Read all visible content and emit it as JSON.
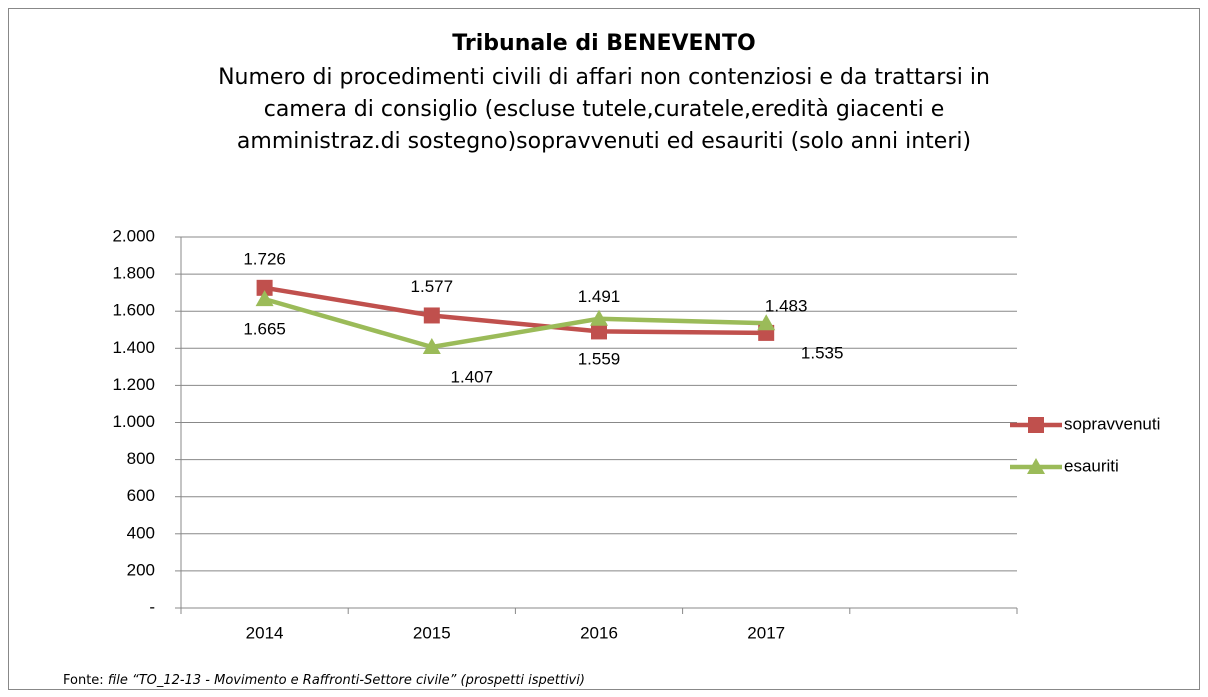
{
  "chart_data": {
    "type": "line",
    "title": "Tribunale di BENEVENTO",
    "subtitle": [
      "Numero di procedimenti civili di affari non contenziosi e da trattarsi in",
      "camera di consiglio (escluse tutele,curatele,eredità giacenti e",
      "amministraz.di sostegno)sopravvenuti ed esauriti (solo anni interi)"
    ],
    "categories": [
      "2014",
      "2015",
      "2016",
      "2017",
      null
    ],
    "series": [
      {
        "name": "sopravvenuti",
        "color": "#c0504d",
        "marker": "square",
        "values": [
          1726,
          1577,
          1491,
          1483,
          null
        ],
        "value_labels": [
          "1.726",
          "1.577",
          "1.491",
          "1.483",
          null
        ]
      },
      {
        "name": "esauriti",
        "color": "#9bbb59",
        "marker": "triangle",
        "values": [
          1665,
          1407,
          1559,
          1535,
          null
        ],
        "value_labels": [
          "1.665",
          "1.407",
          "1.559",
          "1.535",
          null
        ]
      }
    ],
    "ylim": [
      0,
      2000
    ],
    "yticks": [
      {
        "value": 0,
        "label": "-"
      },
      200,
      400,
      600,
      800,
      {
        "value": 1000,
        "label": "1.000"
      },
      {
        "value": 1200,
        "label": "1.200"
      },
      {
        "value": 1400,
        "label": "1.400"
      },
      {
        "value": 1600,
        "label": "1.600"
      },
      {
        "value": 1800,
        "label": "1.800"
      },
      {
        "value": 2000,
        "label": "2.000"
      }
    ],
    "grid": true,
    "legend": "right",
    "source": {
      "label": "Fonte:",
      "text": "file “TO_12-13 - Movimento e Raffronti-Settore civile” (prospetti ispettivi)"
    }
  }
}
